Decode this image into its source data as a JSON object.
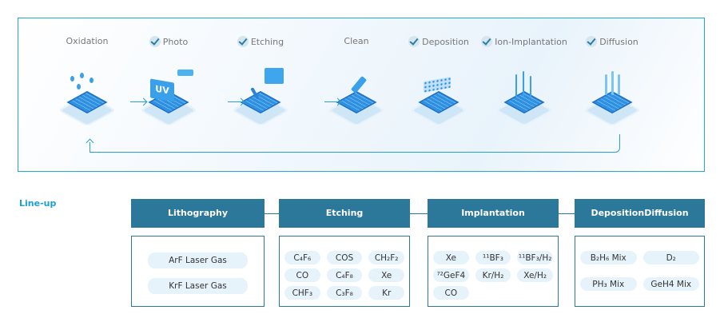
{
  "process": {
    "steps": [
      {
        "label": "Oxidation",
        "checked": false,
        "icon": "oxidation-wafer-icon"
      },
      {
        "label": "Photo",
        "checked": true,
        "icon": "uv-photo-wafer-icon"
      },
      {
        "label": "Etching",
        "checked": true,
        "icon": "etching-wafer-icon"
      },
      {
        "label": "Clean",
        "checked": false,
        "icon": "clean-wafer-icon"
      },
      {
        "label": "Deposition",
        "checked": true,
        "icon": "deposition-wafer-icon"
      },
      {
        "label": "Ion-Implantation",
        "checked": true,
        "icon": "ion-implantation-wafer-icon"
      },
      {
        "label": "Diffusion",
        "checked": true,
        "icon": "diffusion-wafer-icon"
      }
    ],
    "uv_text": "UV"
  },
  "lineup": {
    "title": "Line-up",
    "columns": [
      {
        "title": "Lithography",
        "items": [
          "ArF Laser Gas",
          "KrF Laser Gas"
        ]
      },
      {
        "title": "Etching",
        "items": [
          "C₄F₆",
          "COS",
          "CH₂F₂",
          "CO",
          "C₄F₈",
          "Xe",
          "CHF₃",
          "C₃F₈",
          "Kr"
        ]
      },
      {
        "title": "Implantation",
        "items": [
          "Xe",
          "¹¹BF₃",
          "¹¹BF₃/H₂",
          "⁷²GeF4",
          "Kr/H₂",
          "Xe/H₂",
          "CO"
        ]
      },
      {
        "title": "Deposition\nDiffusion",
        "title_lines": [
          "Deposition",
          "Diffusion"
        ],
        "items": [
          "B₂H₆ Mix",
          "D₂",
          "PH₃ Mix",
          "GeH4 Mix"
        ]
      }
    ]
  },
  "colors": {
    "accent": "#22a9d3",
    "header": "#2b789a",
    "pill": "#e7f3fb"
  }
}
